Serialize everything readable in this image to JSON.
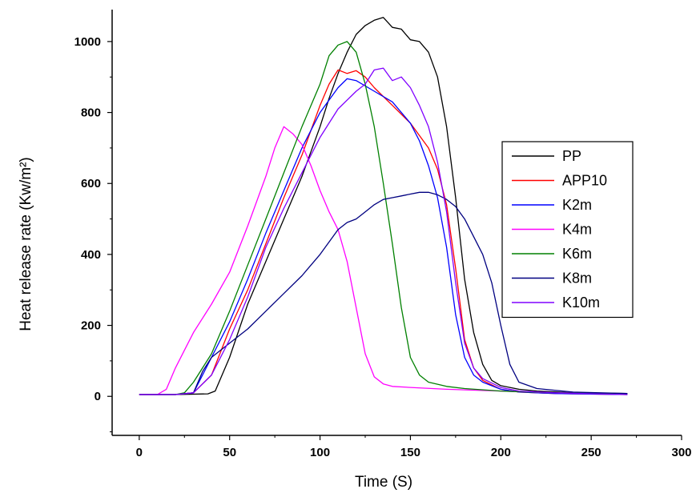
{
  "chart_data": {
    "type": "line",
    "title": "",
    "xlabel": "Time (S)",
    "ylabel": "Heat release rate (Kw/m²)",
    "xlim": [
      -15,
      300
    ],
    "ylim": [
      -110,
      1090
    ],
    "xticks": [
      "0",
      "50",
      "100",
      "150",
      "200",
      "250",
      "300"
    ],
    "yticks": [
      "0",
      "200",
      "400",
      "600",
      "800",
      "1000"
    ],
    "grid": false,
    "legend_position": "right",
    "series": [
      {
        "name": "PP",
        "color": "#000000",
        "x": [
          0,
          20,
          38,
          42,
          50,
          60,
          70,
          80,
          90,
          100,
          105,
          110,
          115,
          120,
          125,
          130,
          135,
          140,
          145,
          150,
          155,
          160,
          165,
          170,
          175,
          180,
          185,
          190,
          195,
          200,
          205,
          210,
          220,
          240,
          270
        ],
        "y": [
          5,
          5,
          7,
          15,
          110,
          260,
          380,
          500,
          620,
          760,
          840,
          910,
          970,
          1020,
          1045,
          1060,
          1068,
          1040,
          1035,
          1005,
          1000,
          970,
          900,
          760,
          560,
          330,
          180,
          90,
          45,
          30,
          25,
          20,
          15,
          10,
          8
        ]
      },
      {
        "name": "APP10",
        "color": "#ff0000",
        "x": [
          0,
          20,
          30,
          40,
          50,
          60,
          70,
          80,
          90,
          100,
          105,
          110,
          115,
          120,
          125,
          130,
          140,
          150,
          160,
          165,
          170,
          175,
          180,
          185,
          190,
          200,
          210,
          230,
          270
        ],
        "y": [
          5,
          5,
          10,
          60,
          190,
          300,
          430,
          560,
          680,
          820,
          880,
          920,
          910,
          918,
          900,
          870,
          820,
          770,
          700,
          640,
          540,
          360,
          160,
          80,
          45,
          20,
          12,
          8,
          5
        ]
      },
      {
        "name": "K2m",
        "color": "#0000ff",
        "x": [
          0,
          20,
          30,
          40,
          50,
          60,
          70,
          80,
          90,
          100,
          110,
          115,
          120,
          130,
          140,
          150,
          155,
          160,
          165,
          170,
          175,
          180,
          185,
          190,
          200,
          210,
          230,
          270
        ],
        "y": [
          5,
          5,
          10,
          110,
          210,
          330,
          460,
          580,
          700,
          800,
          870,
          895,
          890,
          860,
          830,
          770,
          720,
          650,
          560,
          420,
          230,
          110,
          60,
          40,
          20,
          12,
          8,
          5
        ]
      },
      {
        "name": "K4m",
        "color": "#ff00ff",
        "x": [
          0,
          10,
          15,
          20,
          25,
          30,
          40,
          50,
          60,
          70,
          75,
          80,
          85,
          90,
          95,
          100,
          105,
          110,
          115,
          120,
          125,
          130,
          135,
          140,
          150,
          170,
          200,
          230,
          270
        ],
        "y": [
          5,
          5,
          20,
          80,
          130,
          180,
          260,
          350,
          480,
          620,
          700,
          760,
          740,
          710,
          650,
          580,
          520,
          470,
          380,
          250,
          120,
          55,
          35,
          28,
          25,
          20,
          15,
          10,
          8
        ]
      },
      {
        "name": "K6m",
        "color": "#008000",
        "x": [
          0,
          20,
          25,
          30,
          40,
          50,
          60,
          70,
          80,
          90,
          100,
          105,
          110,
          115,
          120,
          125,
          130,
          135,
          140,
          145,
          150,
          155,
          160,
          170,
          180,
          200,
          230,
          270
        ],
        "y": [
          5,
          5,
          10,
          40,
          120,
          240,
          370,
          500,
          630,
          760,
          880,
          960,
          990,
          1000,
          970,
          880,
          760,
          600,
          430,
          250,
          110,
          60,
          40,
          28,
          22,
          15,
          10,
          8
        ]
      },
      {
        "name": "K8m",
        "color": "#000080",
        "x": [
          0,
          20,
          30,
          35,
          40,
          50,
          60,
          70,
          80,
          90,
          100,
          110,
          115,
          120,
          125,
          130,
          135,
          140,
          145,
          150,
          155,
          160,
          165,
          170,
          175,
          180,
          185,
          190,
          195,
          200,
          205,
          210,
          220,
          240,
          270
        ],
        "y": [
          5,
          5,
          10,
          70,
          110,
          150,
          190,
          240,
          290,
          340,
          400,
          470,
          490,
          500,
          520,
          540,
          555,
          560,
          565,
          570,
          575,
          575,
          568,
          555,
          535,
          500,
          450,
          400,
          320,
          200,
          90,
          40,
          22,
          12,
          8
        ]
      },
      {
        "name": "K10m",
        "color": "#8000ff",
        "x": [
          0,
          20,
          30,
          40,
          50,
          60,
          70,
          80,
          90,
          100,
          110,
          120,
          125,
          130,
          135,
          140,
          145,
          150,
          155,
          160,
          165,
          170,
          175,
          180,
          185,
          190,
          200,
          210,
          230,
          270
        ],
        "y": [
          5,
          5,
          10,
          60,
          160,
          280,
          420,
          530,
          630,
          730,
          810,
          860,
          880,
          920,
          925,
          890,
          900,
          870,
          820,
          760,
          660,
          520,
          320,
          150,
          80,
          50,
          25,
          15,
          10,
          5
        ]
      }
    ]
  }
}
